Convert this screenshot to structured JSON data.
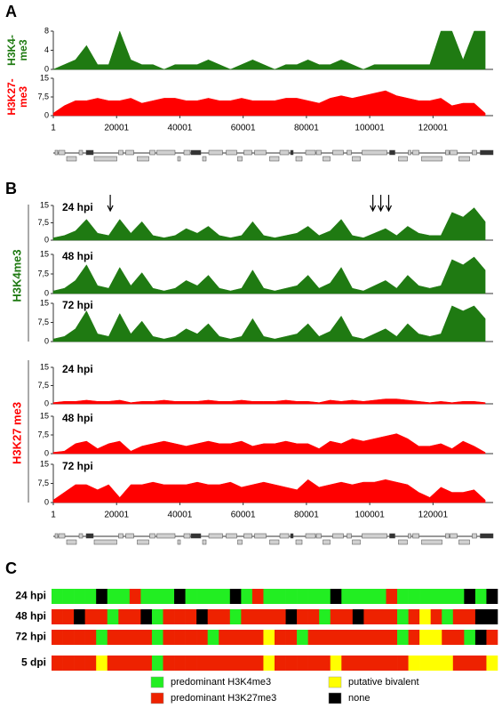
{
  "panels": [
    "A",
    "B",
    "C"
  ],
  "groups": [
    {
      "label": "H3K4me3",
      "color": "#1f7a12"
    },
    {
      "label": "H3K27 me3",
      "color": "#ff0000"
    }
  ],
  "chart_data": [
    {
      "type": "area",
      "ylabel_lines": [
        "H3K4-",
        "me3"
      ],
      "color": "#1f7a12",
      "xlim": [
        1,
        139000
      ],
      "ylim": [
        0,
        8
      ],
      "yticks": [
        0,
        4,
        8
      ],
      "x": [
        1,
        3500,
        7000,
        10500,
        14000,
        17500,
        21000,
        24500,
        28000,
        31500,
        35000,
        38500,
        42000,
        45500,
        49000,
        52500,
        56000,
        59500,
        63000,
        66500,
        70000,
        73500,
        77000,
        80500,
        84000,
        87500,
        91000,
        94500,
        98000,
        101500,
        105000,
        108500,
        112000,
        115500,
        119000,
        122500,
        126000,
        129500,
        133000,
        136500
      ],
      "values": [
        0,
        1,
        2,
        5,
        1,
        1,
        8,
        2,
        1,
        1,
        0,
        1,
        1,
        1,
        2,
        1,
        0,
        1,
        2,
        1,
        0,
        1,
        1,
        2,
        1,
        1,
        2,
        1,
        0,
        1,
        1,
        1,
        1,
        1,
        1,
        8,
        8,
        2,
        8,
        8
      ]
    },
    {
      "type": "area",
      "ylabel_lines": [
        "H3K27-",
        "me3"
      ],
      "color": "#ff0000",
      "xlim": [
        1,
        139000
      ],
      "ylim": [
        0,
        15
      ],
      "yticks": [
        0,
        {
          "value": 7.5,
          "label": "7,5"
        },
        15
      ],
      "xticks": [
        1,
        20001,
        40001,
        60001,
        80001,
        100001,
        120001
      ],
      "x": [
        1,
        3500,
        7000,
        10500,
        14000,
        17500,
        21000,
        24500,
        28000,
        31500,
        35000,
        38500,
        42000,
        45500,
        49000,
        52500,
        56000,
        59500,
        63000,
        66500,
        70000,
        73500,
        77000,
        80500,
        84000,
        87500,
        91000,
        94500,
        98000,
        101500,
        105000,
        108500,
        112000,
        115500,
        119000,
        122500,
        126000,
        129500,
        133000,
        136500
      ],
      "values": [
        1,
        4,
        6,
        6,
        7,
        6,
        6,
        7,
        5,
        6,
        7,
        7,
        6,
        6,
        7,
        6,
        6,
        7,
        6,
        6,
        6,
        7,
        7,
        6,
        5,
        7,
        8,
        7,
        8,
        9,
        10,
        8,
        7,
        6,
        6,
        7,
        4,
        5,
        5,
        1
      ]
    },
    {
      "type": "area",
      "annotation": "24 hpi",
      "color": "#1f7a12",
      "xlim": [
        1,
        139000
      ],
      "ylim": [
        0,
        15
      ],
      "yticks": [
        0,
        {
          "value": 7.5,
          "label": "7,5"
        },
        15
      ],
      "arrows": [
        18000,
        101000,
        103500,
        106000
      ],
      "x": [
        1,
        3500,
        7000,
        10500,
        14000,
        17500,
        21000,
        24500,
        28000,
        31500,
        35000,
        38500,
        42000,
        45500,
        49000,
        52500,
        56000,
        59500,
        63000,
        66500,
        70000,
        73500,
        77000,
        80500,
        84000,
        87500,
        91000,
        94500,
        98000,
        101500,
        105000,
        108500,
        112000,
        115500,
        119000,
        122500,
        126000,
        129500,
        133000,
        136500
      ],
      "values": [
        1,
        2,
        4,
        9,
        3,
        2,
        9,
        3,
        8,
        2,
        1,
        2,
        5,
        3,
        6,
        2,
        1,
        2,
        8,
        2,
        1,
        2,
        3,
        6,
        2,
        4,
        9,
        2,
        1,
        3,
        5,
        2,
        6,
        3,
        2,
        2,
        12,
        10,
        14,
        8
      ]
    },
    {
      "type": "area",
      "annotation": "48 hpi",
      "color": "#1f7a12",
      "xlim": [
        1,
        139000
      ],
      "ylim": [
        0,
        15
      ],
      "yticks": [
        0,
        {
          "value": 7.5,
          "label": "7,5"
        },
        15
      ],
      "x": [
        1,
        3500,
        7000,
        10500,
        14000,
        17500,
        21000,
        24500,
        28000,
        31500,
        35000,
        38500,
        42000,
        45500,
        49000,
        52500,
        56000,
        59500,
        63000,
        66500,
        70000,
        73500,
        77000,
        80500,
        84000,
        87500,
        91000,
        94500,
        98000,
        101500,
        105000,
        108500,
        112000,
        115500,
        119000,
        122500,
        126000,
        129500,
        133000,
        136500
      ],
      "values": [
        1,
        2,
        5,
        11,
        3,
        2,
        10,
        3,
        8,
        2,
        1,
        2,
        5,
        3,
        7,
        2,
        1,
        2,
        9,
        2,
        1,
        2,
        3,
        7,
        2,
        4,
        10,
        2,
        1,
        3,
        5,
        2,
        7,
        3,
        2,
        3,
        13,
        11,
        14,
        9
      ]
    },
    {
      "type": "area",
      "annotation": "72 hpi",
      "color": "#1f7a12",
      "xlim": [
        1,
        139000
      ],
      "ylim": [
        0,
        15
      ],
      "yticks": [
        0,
        {
          "value": 7.5,
          "label": "7,5"
        },
        15
      ],
      "x": [
        1,
        3500,
        7000,
        10500,
        14000,
        17500,
        21000,
        24500,
        28000,
        31500,
        35000,
        38500,
        42000,
        45500,
        49000,
        52500,
        56000,
        59500,
        63000,
        66500,
        70000,
        73500,
        77000,
        80500,
        84000,
        87500,
        91000,
        94500,
        98000,
        101500,
        105000,
        108500,
        112000,
        115500,
        119000,
        122500,
        126000,
        129500,
        133000,
        136500
      ],
      "values": [
        1,
        2,
        5,
        12,
        3,
        2,
        11,
        3,
        8,
        2,
        1,
        2,
        5,
        3,
        7,
        2,
        1,
        2,
        9,
        2,
        1,
        2,
        3,
        7,
        2,
        4,
        10,
        2,
        1,
        3,
        5,
        2,
        7,
        3,
        2,
        3,
        14,
        12,
        14,
        9
      ]
    },
    {
      "type": "area",
      "annotation": "24 hpi",
      "color": "#ff0000",
      "xlim": [
        1,
        139000
      ],
      "ylim": [
        0,
        15
      ],
      "yticks": [
        0,
        {
          "value": 7.5,
          "label": "7,5"
        },
        15
      ],
      "x": [
        1,
        3500,
        7000,
        10500,
        14000,
        17500,
        21000,
        24500,
        28000,
        31500,
        35000,
        38500,
        42000,
        45500,
        49000,
        52500,
        56000,
        59500,
        63000,
        66500,
        70000,
        73500,
        77000,
        80500,
        84000,
        87500,
        91000,
        94500,
        98000,
        101500,
        105000,
        108500,
        112000,
        115500,
        119000,
        122500,
        126000,
        129500,
        133000,
        136500
      ],
      "values": [
        0.5,
        1,
        1,
        1.5,
        1,
        1,
        1.5,
        0.5,
        1,
        1,
        1.5,
        1,
        1,
        1,
        1.5,
        1,
        1,
        1.5,
        1,
        1,
        1,
        1.5,
        1,
        1,
        0.5,
        1.5,
        1,
        1.5,
        1,
        1.5,
        2,
        2,
        1.5,
        1,
        0.5,
        1,
        0.5,
        1,
        1,
        0.5
      ]
    },
    {
      "type": "area",
      "annotation": "48 hpi",
      "color": "#ff0000",
      "xlim": [
        1,
        139000
      ],
      "ylim": [
        0,
        15
      ],
      "yticks": [
        0,
        {
          "value": 7.5,
          "label": "7,5"
        },
        15
      ],
      "x": [
        1,
        3500,
        7000,
        10500,
        14000,
        17500,
        21000,
        24500,
        28000,
        31500,
        35000,
        38500,
        42000,
        45500,
        49000,
        52500,
        56000,
        59500,
        63000,
        66500,
        70000,
        73500,
        77000,
        80500,
        84000,
        87500,
        91000,
        94500,
        98000,
        101500,
        105000,
        108500,
        112000,
        115500,
        119000,
        122500,
        126000,
        129500,
        133000,
        136500
      ],
      "values": [
        0.5,
        1,
        4,
        5,
        2,
        4,
        5,
        1,
        3,
        4,
        5,
        4,
        3,
        4,
        5,
        4,
        4,
        5,
        3,
        4,
        4,
        5,
        4,
        4,
        2,
        5,
        4,
        6,
        5,
        6,
        7,
        8,
        6,
        3,
        3,
        4,
        2,
        5,
        3,
        0.5
      ]
    },
    {
      "type": "area",
      "annotation": "72 hpi",
      "color": "#ff0000",
      "xlim": [
        1,
        139000
      ],
      "ylim": [
        0,
        15
      ],
      "yticks": [
        0,
        {
          "value": 7.5,
          "label": "7,5"
        },
        15
      ],
      "xticks": [
        1,
        20001,
        40001,
        60001,
        80001,
        100001,
        120001
      ],
      "x": [
        1,
        3500,
        7000,
        10500,
        14000,
        17500,
        21000,
        24500,
        28000,
        31500,
        35000,
        38500,
        42000,
        45500,
        49000,
        52500,
        56000,
        59500,
        63000,
        66500,
        70000,
        73500,
        77000,
        80500,
        84000,
        87500,
        91000,
        94500,
        98000,
        101500,
        105000,
        108500,
        112000,
        115500,
        119000,
        122500,
        126000,
        129500,
        133000,
        136500
      ],
      "values": [
        1,
        4,
        7,
        7,
        5,
        7,
        2,
        7,
        7,
        8,
        7,
        7,
        7,
        8,
        7,
        7,
        8,
        6,
        7,
        8,
        7,
        6,
        5,
        9,
        6,
        7,
        8,
        7,
        8,
        8,
        9,
        8,
        7,
        4,
        2,
        6,
        4,
        4,
        5,
        1
      ]
    },
    {
      "type": "heatmap",
      "rows": [
        "24 hpi",
        "48 hpi",
        "72 hpi",
        "5 dpi"
      ],
      "classes": [
        {
          "name": "predominant H3K4me3",
          "color": "#22ee22"
        },
        {
          "name": "predominant H3K27me3",
          "color": "#ee2200"
        },
        {
          "name": "putative bivalent",
          "color": "#ffff00"
        },
        {
          "name": "none",
          "color": "#000000"
        }
      ],
      "values": [
        [
          0,
          0,
          0,
          0,
          3,
          0,
          0,
          1,
          0,
          0,
          0,
          3,
          0,
          0,
          0,
          0,
          3,
          0,
          1,
          0,
          0,
          0,
          0,
          0,
          0,
          3,
          0,
          0,
          0,
          0,
          1,
          0,
          0,
          0,
          0,
          0,
          0,
          3,
          0,
          3
        ],
        [
          1,
          1,
          3,
          1,
          1,
          0,
          1,
          1,
          3,
          0,
          1,
          1,
          1,
          3,
          1,
          1,
          0,
          1,
          1,
          1,
          1,
          3,
          1,
          1,
          0,
          1,
          1,
          3,
          1,
          1,
          1,
          0,
          1,
          2,
          1,
          0,
          1,
          1,
          3,
          3
        ],
        [
          1,
          1,
          1,
          1,
          0,
          1,
          1,
          1,
          1,
          0,
          1,
          1,
          1,
          1,
          0,
          1,
          1,
          1,
          1,
          2,
          1,
          1,
          0,
          1,
          1,
          1,
          1,
          1,
          1,
          1,
          1,
          0,
          1,
          2,
          2,
          1,
          1,
          0,
          3,
          1
        ],
        [
          1,
          1,
          1,
          1,
          2,
          1,
          1,
          1,
          1,
          0,
          1,
          1,
          1,
          1,
          1,
          1,
          1,
          1,
          1,
          2,
          1,
          1,
          1,
          1,
          1,
          2,
          1,
          1,
          1,
          1,
          1,
          1,
          2,
          2,
          2,
          2,
          1,
          1,
          1,
          2
        ]
      ]
    }
  ]
}
